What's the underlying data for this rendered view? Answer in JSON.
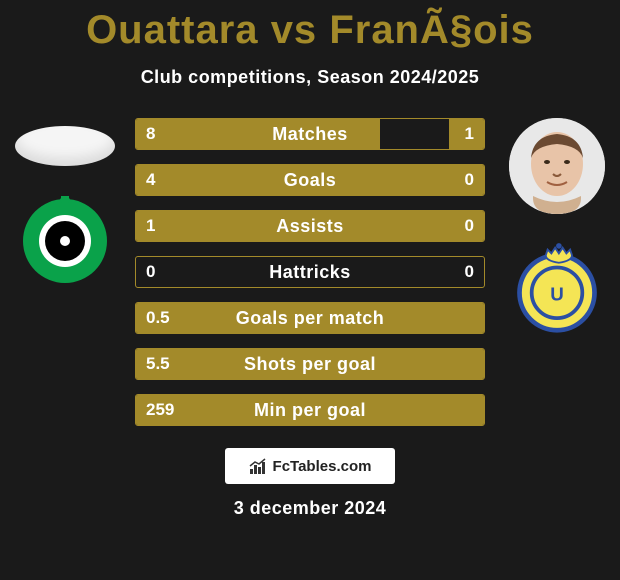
{
  "title_color": "#a38a2a",
  "title_left": "Ouattara",
  "title_vs": "vs",
  "title_right": "FranÃ§ois",
  "subtitle": "Club competitions, Season 2024/2025",
  "accent_color": "#a38a2a",
  "bar_empty_color": "#1a1a1a",
  "bars": [
    {
      "label": "Matches",
      "left": "8",
      "right": "1",
      "left_pct": 70,
      "right_pct": 10
    },
    {
      "label": "Goals",
      "left": "4",
      "right": "0",
      "left_pct": 100,
      "right_pct": 0
    },
    {
      "label": "Assists",
      "left": "1",
      "right": "0",
      "left_pct": 100,
      "right_pct": 0
    },
    {
      "label": "Hattricks",
      "left": "0",
      "right": "0",
      "left_pct": 0,
      "right_pct": 0
    },
    {
      "label": "Goals per match",
      "left": "0.5",
      "right": "",
      "left_pct": 100,
      "right_pct": 0
    },
    {
      "label": "Shots per goal",
      "left": "5.5",
      "right": "",
      "left_pct": 100,
      "right_pct": 0
    },
    {
      "label": "Min per goal",
      "left": "259",
      "right": "",
      "left_pct": 100,
      "right_pct": 0
    }
  ],
  "left_club": {
    "bg": "#0aa24a",
    "inner_ring": "#ffffff",
    "center": "#000000"
  },
  "right_club": {
    "bg": "#f4e555",
    "ring": "#2b4fa3",
    "crown": "#2b4fa3"
  },
  "right_player_face": {
    "skin": "#e8c4a8",
    "hair": "#6b4a32"
  },
  "brand_text": "FcTables.com",
  "date": "3 december 2024"
}
